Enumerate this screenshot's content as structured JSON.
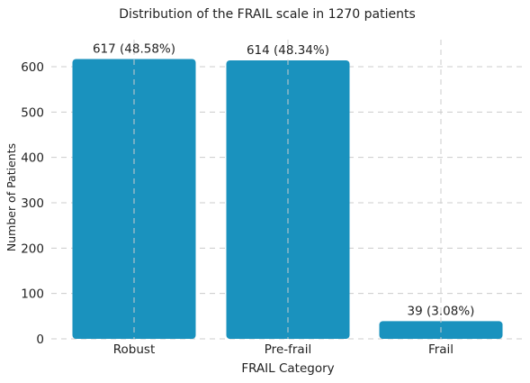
{
  "chart_data": {
    "type": "bar",
    "title": "Distribution of the FRAIL scale in 1270 patients",
    "xlabel": "FRAIL Category",
    "ylabel": "Number of Patients",
    "categories": [
      "Robust",
      "Pre-frail",
      "Frail"
    ],
    "values": [
      617,
      614,
      39
    ],
    "data_labels": [
      "617 (48.58%)",
      "614 (48.34%)",
      "39 (3.08%)"
    ],
    "yticks": [
      "0",
      "100",
      "200",
      "300",
      "400",
      "500",
      "600"
    ],
    "ylim": [
      0,
      650
    ],
    "grid": true,
    "bar_color": "#1a92be",
    "grid_color": "#cccccc"
  }
}
